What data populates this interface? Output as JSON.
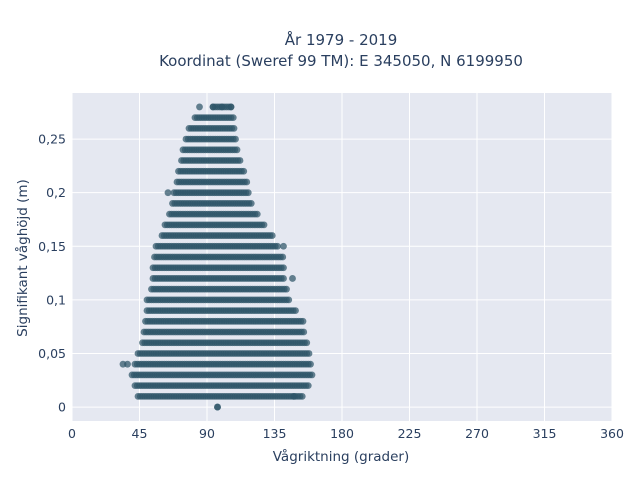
{
  "chart_data": {
    "type": "scatter",
    "title_lines": [
      "År 1979 - 2019",
      "Koordinat (Sweref 99 TM): E 345050, N 6199950"
    ],
    "xlabel": "Vågriktning (grader)",
    "ylabel": "Signifikant våghöjd (m)",
    "xlim": [
      0,
      360
    ],
    "ylim": [
      -0.013,
      0.293
    ],
    "x_ticks": [
      0,
      45,
      90,
      135,
      180,
      225,
      270,
      315,
      360
    ],
    "x_tick_labels": [
      "0",
      "45",
      "90",
      "135",
      "180",
      "225",
      "270",
      "315",
      "360"
    ],
    "y_ticks": [
      0,
      0.05,
      0.1,
      0.15,
      0.2,
      0.25
    ],
    "y_tick_labels": [
      "0",
      "0,05",
      "0,1",
      "0,15",
      "0,2",
      "0,25"
    ],
    "grid": true,
    "marker_color": "#2e5468",
    "plot_background": "#e5e8f1",
    "level_step": 0.01,
    "bands": [
      {
        "y": 0.0,
        "xmin": 97,
        "xmax": 97
      },
      {
        "y": 0.01,
        "xmin": 44,
        "xmax": 154
      },
      {
        "y": 0.02,
        "xmin": 42,
        "xmax": 158
      },
      {
        "y": 0.03,
        "xmin": 40,
        "xmax": 160
      },
      {
        "y": 0.04,
        "xmin": 42,
        "xmax": 160
      },
      {
        "y": 0.05,
        "xmin": 44,
        "xmax": 158
      },
      {
        "y": 0.06,
        "xmin": 47,
        "xmax": 157
      },
      {
        "y": 0.07,
        "xmin": 48,
        "xmax": 155
      },
      {
        "y": 0.08,
        "xmin": 49,
        "xmax": 154
      },
      {
        "y": 0.09,
        "xmin": 50,
        "xmax": 150
      },
      {
        "y": 0.1,
        "xmin": 50,
        "xmax": 145
      },
      {
        "y": 0.11,
        "xmin": 53,
        "xmax": 144
      },
      {
        "y": 0.12,
        "xmin": 54,
        "xmax": 142
      },
      {
        "y": 0.13,
        "xmin": 54,
        "xmax": 142
      },
      {
        "y": 0.14,
        "xmin": 55,
        "xmax": 141
      },
      {
        "y": 0.15,
        "xmin": 56,
        "xmax": 138
      },
      {
        "y": 0.16,
        "xmin": 60,
        "xmax": 134
      },
      {
        "y": 0.17,
        "xmin": 62,
        "xmax": 128
      },
      {
        "y": 0.18,
        "xmin": 65,
        "xmax": 124
      },
      {
        "y": 0.19,
        "xmin": 67,
        "xmax": 120
      },
      {
        "y": 0.2,
        "xmin": 68,
        "xmax": 118
      },
      {
        "y": 0.21,
        "xmin": 70,
        "xmax": 117
      },
      {
        "y": 0.22,
        "xmin": 71,
        "xmax": 115
      },
      {
        "y": 0.23,
        "xmin": 73,
        "xmax": 113
      },
      {
        "y": 0.24,
        "xmin": 74,
        "xmax": 111
      },
      {
        "y": 0.25,
        "xmin": 76,
        "xmax": 110
      },
      {
        "y": 0.26,
        "xmin": 78,
        "xmax": 109
      },
      {
        "y": 0.27,
        "xmin": 82,
        "xmax": 108
      },
      {
        "y": 0.28,
        "xmin": 94,
        "xmax": 106
      }
    ],
    "outliers": [
      {
        "x": 97,
        "y": 0.0
      },
      {
        "x": 34,
        "y": 0.04
      },
      {
        "x": 37,
        "y": 0.04
      },
      {
        "x": 148,
        "y": 0.01
      },
      {
        "x": 147,
        "y": 0.12
      },
      {
        "x": 141,
        "y": 0.15
      },
      {
        "x": 64,
        "y": 0.2
      },
      {
        "x": 85,
        "y": 0.28
      },
      {
        "x": 106,
        "y": 0.28
      },
      {
        "x": 94,
        "y": 0.28
      },
      {
        "x": 100,
        "y": 0.28
      }
    ]
  }
}
